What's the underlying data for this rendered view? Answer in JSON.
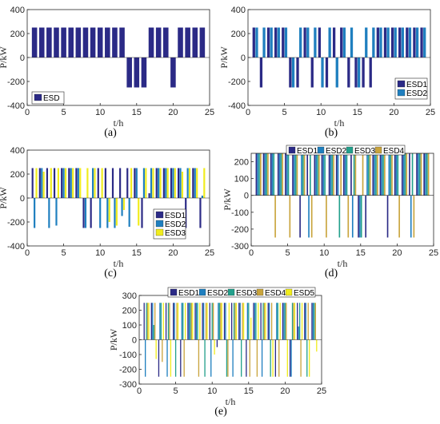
{
  "colors": {
    "ESD1": "#2b2a86",
    "ESD2": "#1f7fbf",
    "ESD3": "#22a08c",
    "ESD4": "#c9a43c",
    "ESD5": "#f0ec1e",
    "ESD3_c": "#f0ec1e"
  },
  "chart_data": [
    {
      "type": "bar",
      "caption": "(a)",
      "xlabel": "t/h",
      "ylabel": "P/kW",
      "xlim": [
        0,
        25
      ],
      "ylim": [
        -400,
        400
      ],
      "xticks": [
        "0",
        "5",
        "10",
        "15",
        "20",
        "25"
      ],
      "yticks": [
        "-400",
        "-200",
        "0",
        "200",
        "400"
      ],
      "legend_position": "lower-left",
      "x": [
        1,
        2,
        3,
        4,
        5,
        6,
        7,
        8,
        9,
        10,
        11,
        12,
        13,
        14,
        15,
        16,
        17,
        18,
        19,
        20,
        21,
        22,
        23,
        24
      ],
      "series": [
        {
          "name": "ESD",
          "values": [
            250,
            250,
            250,
            250,
            250,
            250,
            250,
            250,
            250,
            250,
            250,
            250,
            250,
            -250,
            -250,
            -250,
            250,
            250,
            250,
            -250,
            250,
            250,
            250,
            250
          ]
        }
      ]
    },
    {
      "type": "bar",
      "caption": "(b)",
      "xlabel": "t/h",
      "ylabel": "P/kW",
      "xlim": [
        0,
        25
      ],
      "ylim": [
        -400,
        400
      ],
      "xticks": [
        "0",
        "5",
        "10",
        "15",
        "20",
        "25"
      ],
      "yticks": [
        "-400",
        "-200",
        "0",
        "200",
        "400"
      ],
      "legend_position": "lower-right",
      "x": [
        1,
        2,
        3,
        4,
        5,
        6,
        7,
        8,
        9,
        10,
        11,
        12,
        13,
        14,
        15,
        16,
        17,
        18,
        19,
        20,
        21,
        22,
        23,
        24
      ],
      "series": [
        {
          "name": "ESD1",
          "values": [
            250,
            -250,
            250,
            250,
            250,
            -250,
            -250,
            250,
            -250,
            250,
            -250,
            250,
            250,
            -250,
            -250,
            -250,
            -250,
            250,
            250,
            250,
            250,
            250,
            250,
            250
          ]
        },
        {
          "name": "ESD2",
          "values": [
            250,
            250,
            250,
            250,
            250,
            -250,
            250,
            250,
            250,
            -250,
            250,
            -250,
            250,
            250,
            -250,
            250,
            250,
            250,
            250,
            250,
            250,
            250,
            250,
            250
          ]
        }
      ]
    },
    {
      "type": "bar",
      "caption": "(c)",
      "xlabel": "t/h",
      "ylabel": "P/kW",
      "xlim": [
        0,
        25
      ],
      "ylim": [
        -400,
        400
      ],
      "xticks": [
        "0",
        "5",
        "10",
        "15",
        "20",
        "25"
      ],
      "yticks": [
        "-400",
        "-200",
        "0",
        "200",
        "400"
      ],
      "legend_position": "lower-right",
      "x": [
        1,
        2,
        3,
        4,
        5,
        6,
        7,
        8,
        9,
        10,
        11,
        12,
        13,
        14,
        15,
        16,
        17,
        18,
        19,
        20,
        21,
        22,
        23,
        24
      ],
      "series": [
        {
          "name": "ESD1",
          "values": [
            250,
            250,
            250,
            250,
            250,
            250,
            250,
            -250,
            -250,
            250,
            250,
            250,
            250,
            250,
            250,
            -250,
            40,
            250,
            250,
            250,
            250,
            -250,
            250,
            -250
          ]
        },
        {
          "name": "ESD2",
          "values": [
            -250,
            250,
            -250,
            -230,
            250,
            250,
            250,
            -250,
            250,
            -250,
            -250,
            -250,
            -150,
            -240,
            250,
            250,
            250,
            250,
            250,
            250,
            250,
            250,
            250,
            20
          ]
        },
        {
          "name": "ESD3",
          "values": [
            250,
            220,
            250,
            250,
            250,
            250,
            250,
            250,
            250,
            250,
            -200,
            -230,
            -100,
            250,
            -230,
            250,
            250,
            250,
            250,
            250,
            220,
            250,
            250,
            250
          ]
        }
      ]
    },
    {
      "type": "bar",
      "caption": "(d)",
      "xlabel": "t/h",
      "ylabel": "P/kW",
      "xlim": [
        0,
        25
      ],
      "ylim": [
        -300,
        250
      ],
      "xticks": [
        "0",
        "5",
        "10",
        "15",
        "20",
        "25"
      ],
      "yticks": [
        "-300",
        "-200",
        "-100",
        "0",
        "100",
        "200"
      ],
      "legend_position": "top",
      "x": [
        1,
        2,
        3,
        4,
        5,
        6,
        7,
        8,
        9,
        10,
        11,
        12,
        13,
        14,
        15,
        16,
        17,
        18,
        19,
        20,
        21,
        22,
        23,
        24
      ],
      "series": [
        {
          "name": "ESD1",
          "values": [
            250,
            250,
            250,
            250,
            250,
            250,
            -250,
            250,
            250,
            250,
            250,
            250,
            250,
            250,
            -250,
            -250,
            250,
            250,
            -250,
            250,
            250,
            250,
            250,
            250
          ]
        },
        {
          "name": "ESD2",
          "values": [
            250,
            250,
            250,
            250,
            250,
            250,
            250,
            -250,
            250,
            250,
            250,
            250,
            250,
            -250,
            -250,
            250,
            250,
            250,
            250,
            250,
            250,
            -250,
            250,
            250
          ]
        },
        {
          "name": "ESD3",
          "values": [
            250,
            250,
            250,
            250,
            250,
            250,
            250,
            250,
            250,
            250,
            250,
            -250,
            250,
            250,
            -250,
            250,
            250,
            250,
            250,
            250,
            250,
            250,
            250,
            250
          ]
        },
        {
          "name": "ESD4",
          "values": [
            250,
            250,
            -250,
            250,
            -250,
            250,
            250,
            -250,
            250,
            -250,
            250,
            250,
            -250,
            250,
            250,
            250,
            250,
            250,
            250,
            -250,
            250,
            -250,
            250,
            250
          ]
        }
      ]
    },
    {
      "type": "bar",
      "caption": "(e)",
      "xlabel": "t/h",
      "ylabel": "P/kW",
      "xlim": [
        0,
        25
      ],
      "ylim": [
        -300,
        300
      ],
      "xticks": [
        "0",
        "5",
        "10",
        "15",
        "20",
        "25"
      ],
      "yticks": [
        "-300",
        "-200",
        "-100",
        "0",
        "100",
        "200",
        "300"
      ],
      "legend_position": "top",
      "x": [
        1,
        2,
        3,
        4,
        5,
        6,
        7,
        8,
        9,
        10,
        11,
        12,
        13,
        14,
        15,
        16,
        17,
        18,
        19,
        20,
        21,
        22,
        23,
        24
      ],
      "series": [
        {
          "name": "ESD1",
          "values": [
            250,
            250,
            -250,
            250,
            250,
            -250,
            250,
            250,
            250,
            250,
            -50,
            250,
            250,
            250,
            -250,
            250,
            250,
            250,
            -250,
            250,
            -250,
            250,
            250,
            250
          ]
        },
        {
          "name": "ESD2",
          "values": [
            -250,
            250,
            250,
            -250,
            250,
            250,
            250,
            250,
            250,
            -250,
            250,
            250,
            -250,
            250,
            250,
            250,
            -250,
            250,
            250,
            250,
            -250,
            90,
            250,
            250
          ]
        },
        {
          "name": "ESD3",
          "values": [
            250,
            100,
            250,
            250,
            -250,
            250,
            250,
            250,
            -250,
            250,
            250,
            -250,
            250,
            -250,
            250,
            250,
            250,
            -250,
            250,
            250,
            250,
            250,
            -250,
            250
          ]
        },
        {
          "name": "ESD4",
          "values": [
            250,
            250,
            -150,
            250,
            250,
            -250,
            250,
            -250,
            250,
            250,
            250,
            -250,
            250,
            250,
            -250,
            -250,
            250,
            250,
            -250,
            250,
            250,
            -250,
            250,
            250
          ]
        },
        {
          "name": "ESD5",
          "values": [
            250,
            -130,
            250,
            -250,
            250,
            250,
            250,
            250,
            250,
            -100,
            250,
            250,
            250,
            250,
            150,
            250,
            250,
            -250,
            250,
            -250,
            250,
            250,
            -250,
            -80
          ]
        }
      ]
    }
  ]
}
